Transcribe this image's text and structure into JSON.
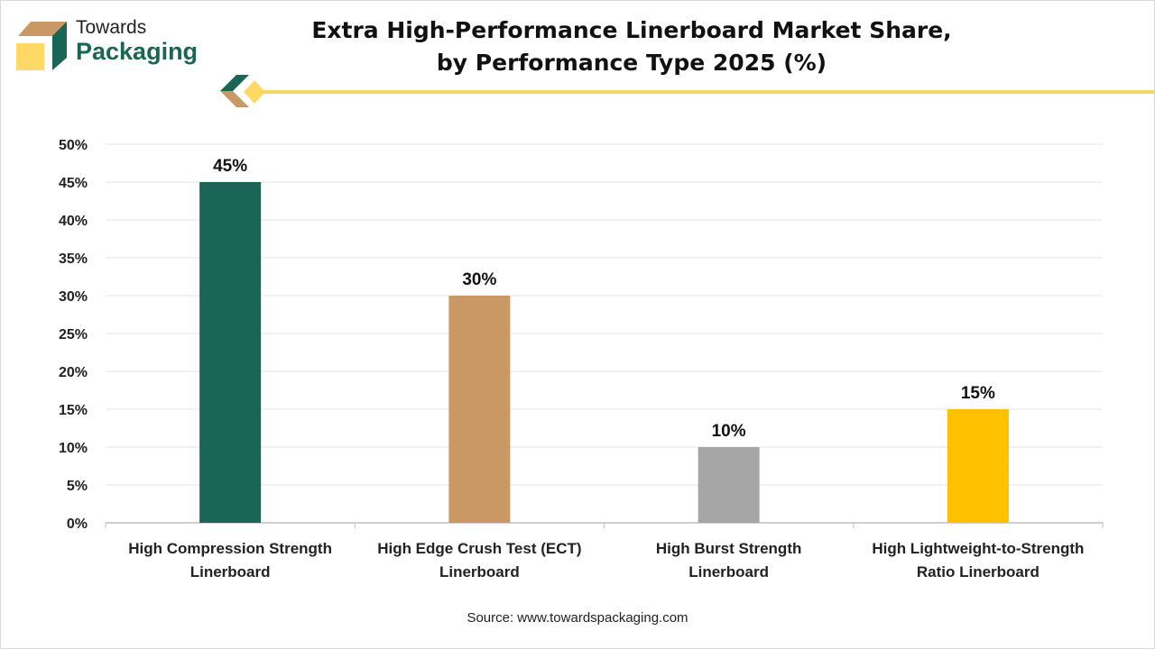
{
  "logo": {
    "line1": "Towards",
    "line2": "Packaging"
  },
  "title_line1": "Extra High-Performance Linerboard Market Share,",
  "title_line2": "by Performance Type 2025 (%)",
  "source": "Source: www.towardspackaging.com",
  "chart_data": {
    "type": "bar",
    "title": "Extra High-Performance Linerboard Market Share, by Performance Type 2025 (%)",
    "categories": [
      [
        "High Compression Strength",
        "Linerboard"
      ],
      [
        "High Edge Crush Test (ECT)",
        "Linerboard"
      ],
      [
        "High Burst Strength",
        "Linerboard"
      ],
      [
        "High Lightweight-to-Strength",
        "Ratio Linerboard"
      ]
    ],
    "values": [
      45,
      30,
      10,
      15
    ],
    "data_labels": [
      "45%",
      "30%",
      "10%",
      "15%"
    ],
    "colors": [
      "#1a6656",
      "#c99865",
      "#a6a6a6",
      "#ffc000"
    ],
    "yticks": [
      "0%",
      "5%",
      "10%",
      "15%",
      "20%",
      "25%",
      "30%",
      "35%",
      "40%",
      "45%",
      "50%"
    ],
    "ylim": [
      0,
      50
    ],
    "grid": true,
    "xlabel": "",
    "ylabel": ""
  }
}
